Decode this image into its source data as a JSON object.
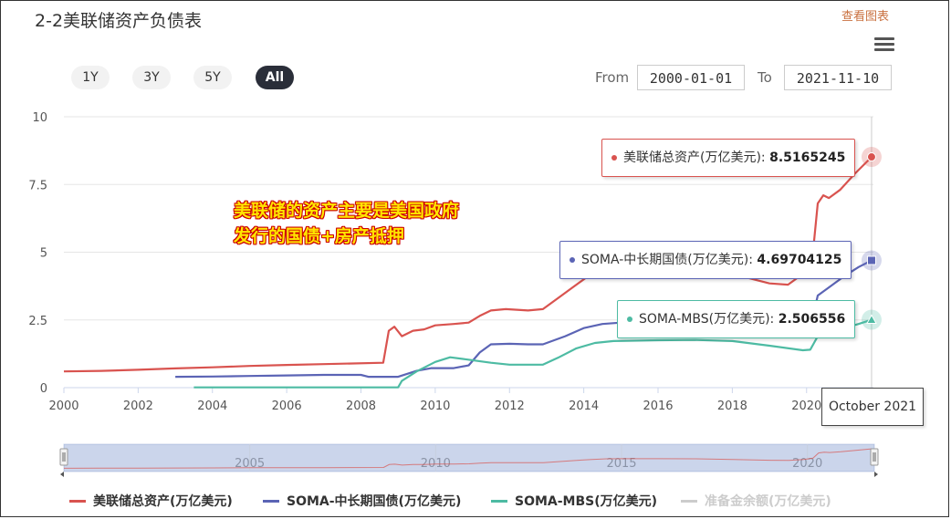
{
  "title": "2-2美联储资产负债表",
  "view_chart_link": "查看图表",
  "menu_icon": "hamburger-menu-icon",
  "range_buttons": [
    "1Y",
    "3Y",
    "5Y",
    "All"
  ],
  "active_range": "All",
  "from_label": "From",
  "from_value": "2000-01-01",
  "to_label": "To",
  "to_value": "2021-11-10",
  "annotation": {
    "line1": "美联储的资产主要是美国政府",
    "line2": "发行的国债+房产抵押"
  },
  "tooltips": {
    "total": {
      "label": "美联储总资产(万亿美元):",
      "value": "8.5165245"
    },
    "treasury": {
      "label": "SOMA-中长期国债(万亿美元):",
      "value": "4.69704125"
    },
    "mbs": {
      "label": "SOMA-MBS(万亿美元):",
      "value": "2.506556"
    },
    "x": "October 2021"
  },
  "navigator_ticks": [
    "2005",
    "2010",
    "2015",
    "2020"
  ],
  "legend": [
    {
      "name": "美联储总资产(万亿美元)",
      "color": "#d9534f",
      "visible": true
    },
    {
      "name": "SOMA-中长期国债(万亿美元)",
      "color": "#5b64b5",
      "visible": true
    },
    {
      "name": "SOMA-MBS(万亿美元)",
      "color": "#4dbba3",
      "visible": true
    },
    {
      "name": "准备金余额(万亿美元)",
      "color": "#cccccc",
      "visible": false
    }
  ],
  "chart_data": {
    "type": "line",
    "xlabel": "",
    "ylabel": "",
    "ylim": [
      0,
      10
    ],
    "yticks": [
      "0",
      "2.5",
      "5",
      "7.5",
      "10"
    ],
    "xlim": [
      2000,
      2021.8
    ],
    "xticks": [
      "2000",
      "2002",
      "2004",
      "2006",
      "2008",
      "2010",
      "2012",
      "2014",
      "2016",
      "2018",
      "2020"
    ],
    "grid": true,
    "series": [
      {
        "name": "美联储总资产(万亿美元)",
        "color": "#d9534f",
        "points": [
          [
            2000,
            0.6
          ],
          [
            2001,
            0.62
          ],
          [
            2002,
            0.66
          ],
          [
            2003,
            0.71
          ],
          [
            2004,
            0.75
          ],
          [
            2005,
            0.8
          ],
          [
            2006,
            0.84
          ],
          [
            2007,
            0.87
          ],
          [
            2008.6,
            0.92
          ],
          [
            2008.75,
            2.1
          ],
          [
            2008.9,
            2.25
          ],
          [
            2009.1,
            1.9
          ],
          [
            2009.4,
            2.1
          ],
          [
            2009.7,
            2.15
          ],
          [
            2010,
            2.3
          ],
          [
            2010.5,
            2.35
          ],
          [
            2010.9,
            2.4
          ],
          [
            2011.2,
            2.65
          ],
          [
            2011.5,
            2.85
          ],
          [
            2011.9,
            2.9
          ],
          [
            2012.5,
            2.85
          ],
          [
            2012.9,
            2.9
          ],
          [
            2013.3,
            3.3
          ],
          [
            2013.7,
            3.7
          ],
          [
            2014.2,
            4.2
          ],
          [
            2014.6,
            4.45
          ],
          [
            2015,
            4.5
          ],
          [
            2016,
            4.5
          ],
          [
            2017,
            4.45
          ],
          [
            2018,
            4.2
          ],
          [
            2019,
            3.85
          ],
          [
            2019.5,
            3.8
          ],
          [
            2019.9,
            4.2
          ],
          [
            2020.15,
            4.7
          ],
          [
            2020.3,
            6.8
          ],
          [
            2020.45,
            7.1
          ],
          [
            2020.6,
            7.0
          ],
          [
            2020.9,
            7.3
          ],
          [
            2021.3,
            7.9
          ],
          [
            2021.75,
            8.5165245
          ]
        ]
      },
      {
        "name": "SOMA-中长期国债(万亿美元)",
        "color": "#5b64b5",
        "points": [
          [
            2003,
            0.4
          ],
          [
            2004,
            0.41
          ],
          [
            2005,
            0.43
          ],
          [
            2006,
            0.45
          ],
          [
            2007,
            0.47
          ],
          [
            2008,
            0.47
          ],
          [
            2008.2,
            0.4
          ],
          [
            2009,
            0.4
          ],
          [
            2009.5,
            0.62
          ],
          [
            2009.9,
            0.72
          ],
          [
            2010.5,
            0.72
          ],
          [
            2010.9,
            0.82
          ],
          [
            2011.2,
            1.3
          ],
          [
            2011.5,
            1.6
          ],
          [
            2012,
            1.62
          ],
          [
            2012.5,
            1.6
          ],
          [
            2012.9,
            1.6
          ],
          [
            2013.5,
            1.9
          ],
          [
            2014,
            2.2
          ],
          [
            2014.5,
            2.35
          ],
          [
            2015,
            2.4
          ],
          [
            2016,
            2.42
          ],
          [
            2017,
            2.42
          ],
          [
            2017.9,
            2.4
          ],
          [
            2018.5,
            2.2
          ],
          [
            2019,
            2.1
          ],
          [
            2019.5,
            2.05
          ],
          [
            2020,
            2.1
          ],
          [
            2020.15,
            2.5
          ],
          [
            2020.3,
            3.4
          ],
          [
            2020.6,
            3.7
          ],
          [
            2021,
            4.1
          ],
          [
            2021.4,
            4.45
          ],
          [
            2021.75,
            4.69704125
          ]
        ]
      },
      {
        "name": "SOMA-MBS(万亿美元)",
        "color": "#4dbba3",
        "points": [
          [
            2003.5,
            0.01
          ],
          [
            2009,
            0.01
          ],
          [
            2009.1,
            0.25
          ],
          [
            2009.5,
            0.6
          ],
          [
            2010,
            0.95
          ],
          [
            2010.4,
            1.12
          ],
          [
            2010.8,
            1.05
          ],
          [
            2011.5,
            0.92
          ],
          [
            2012,
            0.85
          ],
          [
            2012.9,
            0.85
          ],
          [
            2013.3,
            1.1
          ],
          [
            2013.8,
            1.45
          ],
          [
            2014.3,
            1.65
          ],
          [
            2014.8,
            1.72
          ],
          [
            2016,
            1.75
          ],
          [
            2017,
            1.76
          ],
          [
            2018,
            1.72
          ],
          [
            2019,
            1.55
          ],
          [
            2019.9,
            1.38
          ],
          [
            2020.1,
            1.4
          ],
          [
            2020.3,
            1.9
          ],
          [
            2020.6,
            2.0
          ],
          [
            2021,
            2.2
          ],
          [
            2021.4,
            2.35
          ],
          [
            2021.75,
            2.506556
          ]
        ]
      }
    ]
  }
}
